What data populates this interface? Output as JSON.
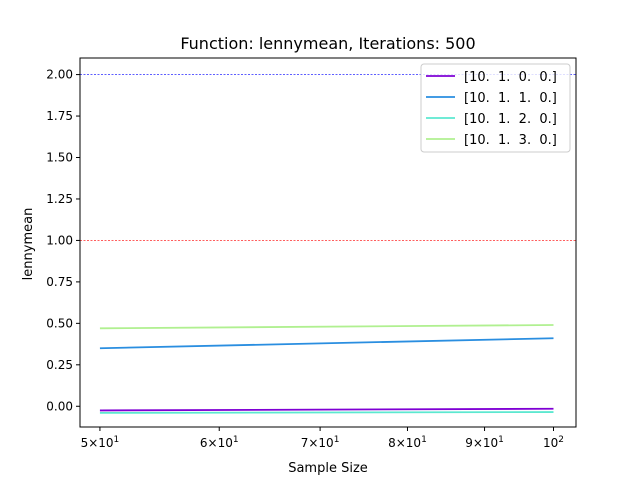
{
  "chart_data": {
    "type": "line",
    "title": "Function: lennymean, Iterations: 500",
    "xlabel": "Sample Size",
    "ylabel": "lennymean",
    "xscale": "log",
    "xlim": [
      48.5,
      103.5
    ],
    "ylim": [
      -0.125,
      2.1
    ],
    "x_ticks": [
      {
        "value": 50,
        "mantissa": "5",
        "base": "10",
        "exp": "1"
      },
      {
        "value": 60,
        "mantissa": "6",
        "base": "10",
        "exp": "1"
      },
      {
        "value": 70,
        "mantissa": "7",
        "base": "10",
        "exp": "1"
      },
      {
        "value": 80,
        "mantissa": "8",
        "base": "10",
        "exp": "1"
      },
      {
        "value": 90,
        "mantissa": "9",
        "base": "10",
        "exp": "1"
      },
      {
        "value": 100,
        "mantissa": "",
        "base": "10",
        "exp": "2"
      }
    ],
    "y_ticks": [
      {
        "value": 0.0,
        "label": "0.00"
      },
      {
        "value": 0.25,
        "label": "0.25"
      },
      {
        "value": 0.5,
        "label": "0.50"
      },
      {
        "value": 0.75,
        "label": "0.75"
      },
      {
        "value": 1.0,
        "label": "1.00"
      },
      {
        "value": 1.25,
        "label": "1.25"
      },
      {
        "value": 1.5,
        "label": "1.50"
      },
      {
        "value": 1.75,
        "label": "1.75"
      },
      {
        "value": 2.0,
        "label": "2.00"
      }
    ],
    "reference_lines": [
      {
        "y": 2.0,
        "color": "#0000ff"
      },
      {
        "y": 1.0,
        "color": "#ff0000"
      }
    ],
    "legend_position": "top-right",
    "grid": false,
    "x": [
      50,
      100
    ],
    "series": [
      {
        "name": "[10.  1.  0.  0.]",
        "color": "#7f00d4",
        "values": [
          -0.025,
          -0.015
        ]
      },
      {
        "name": "[10.  1.  1.  0.]",
        "color": "#2a8ee0",
        "values": [
          0.35,
          0.41
        ]
      },
      {
        "name": "[10.  1.  2.  0.]",
        "color": "#5ce8d0",
        "values": [
          -0.04,
          -0.035
        ]
      },
      {
        "name": "[10.  1.  3.  0.]",
        "color": "#b0f090",
        "values": [
          0.47,
          0.49
        ]
      }
    ]
  }
}
